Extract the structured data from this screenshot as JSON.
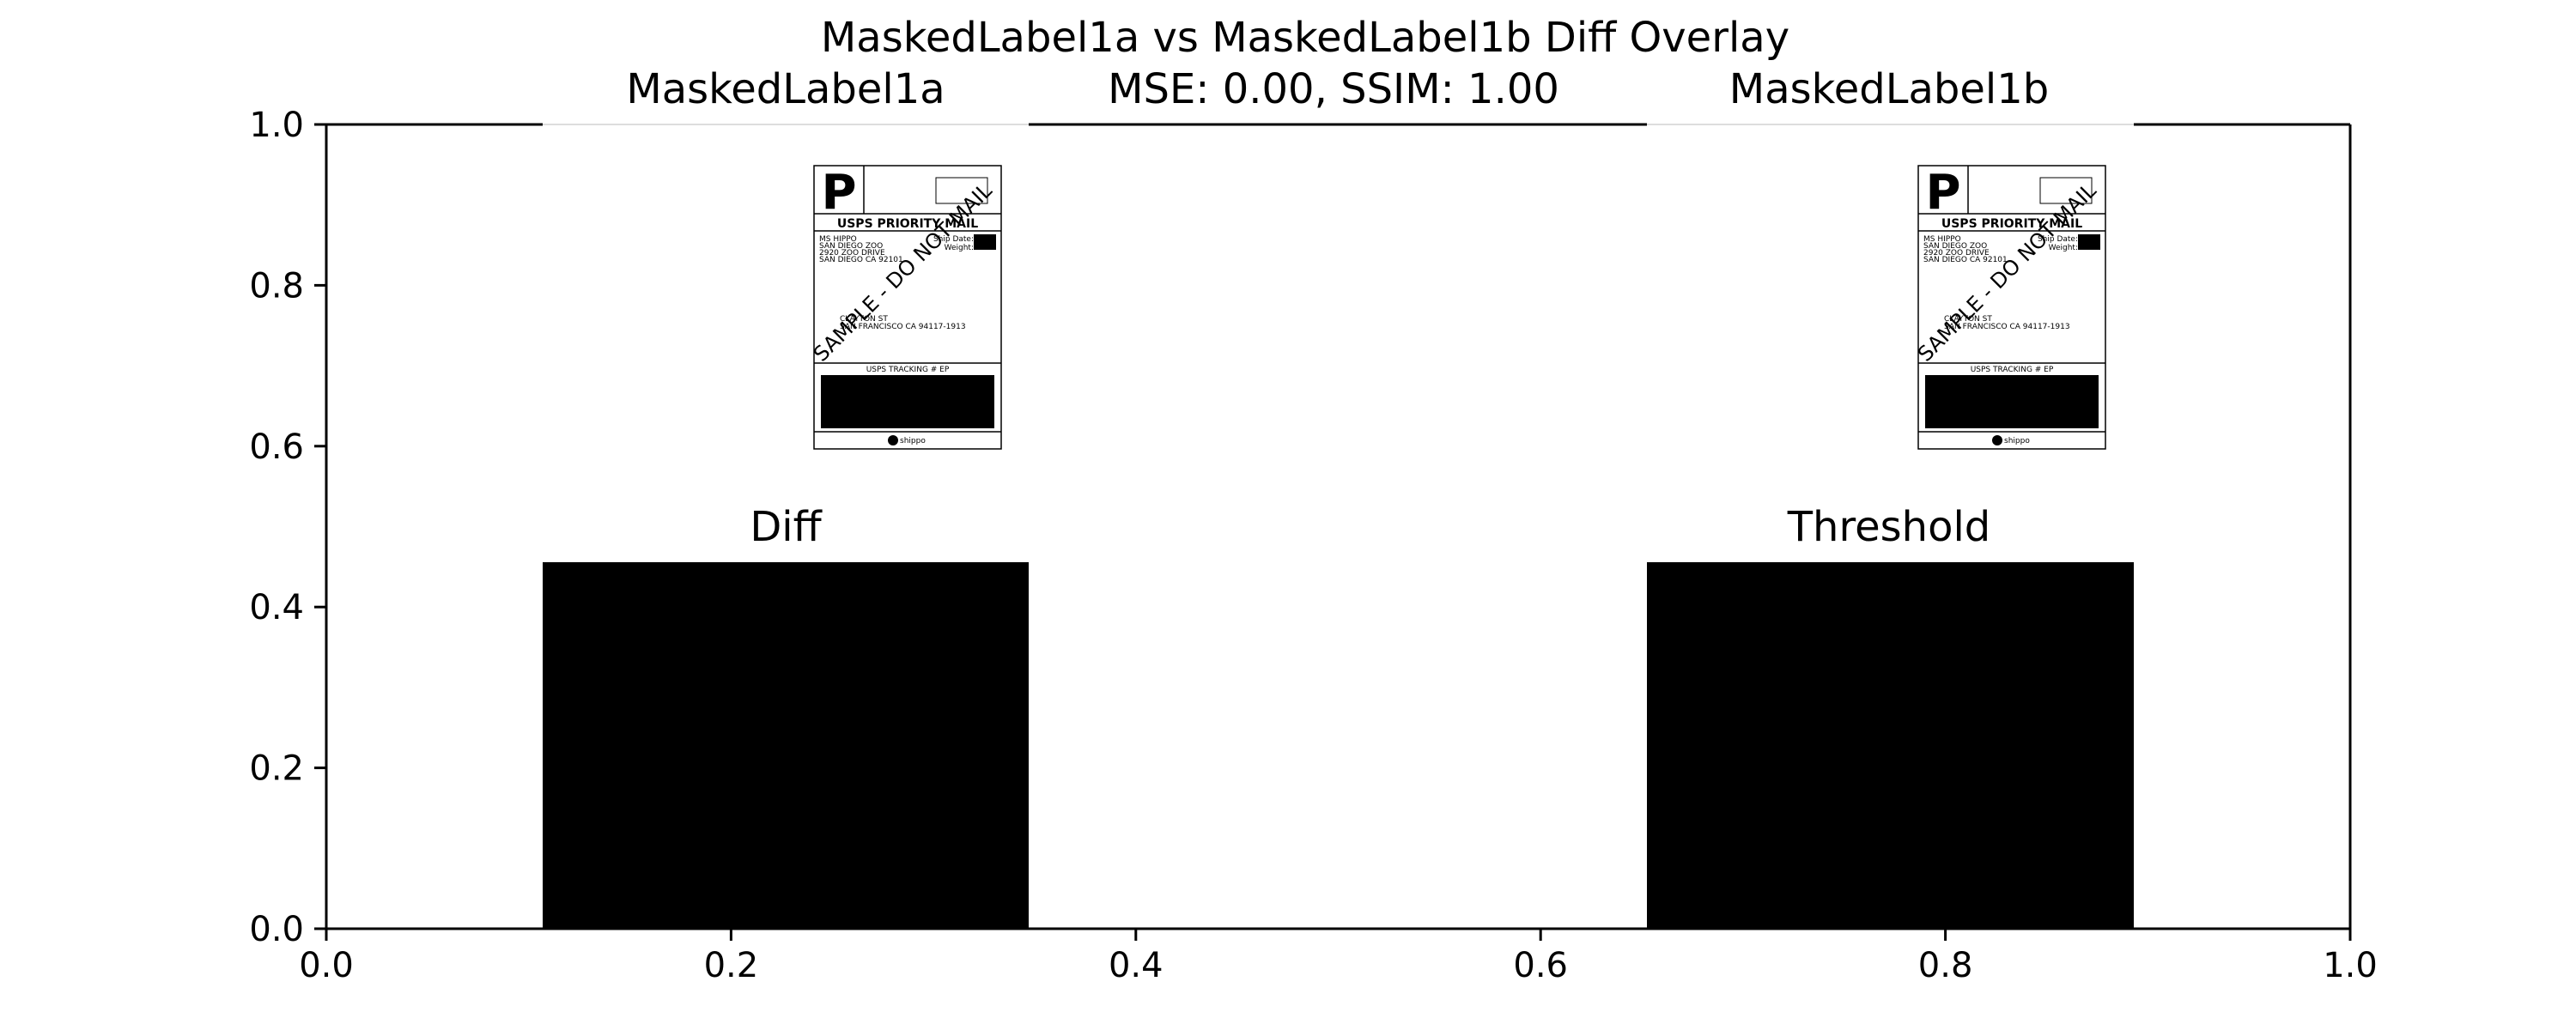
{
  "chart_data": {
    "type": "image",
    "title": "MaskedLabel1a vs MaskedLabel1b Diff Overlay",
    "xlim": [
      0.0,
      1.0
    ],
    "ylim": [
      0.0,
      1.0
    ],
    "x_ticks": [
      "0.0",
      "0.2",
      "0.4",
      "0.6",
      "0.8",
      "1.0"
    ],
    "y_ticks": [
      "0.0",
      "0.2",
      "0.4",
      "0.6",
      "0.8",
      "1.0"
    ],
    "grid": false,
    "metrics_text": "MSE: 0.00, SSIM: 1.00",
    "panels": [
      {
        "name": "masked-label-1a-panel",
        "title": "MaskedLabel1a",
        "kind": "label"
      },
      {
        "name": "masked-label-1b-panel",
        "title": "MaskedLabel1b",
        "kind": "label"
      },
      {
        "name": "diff-panel",
        "title": "Diff",
        "kind": "filled-black"
      },
      {
        "name": "threshold-panel",
        "title": "Threshold",
        "kind": "filled-black"
      }
    ],
    "label_image": {
      "logo_letter": "P",
      "service": "USPS PRIORITY MAIL",
      "watermark": "SAMPLE - DO NOT MAIL",
      "sender_lines": [
        "MS HIPPO",
        "SAN DIEGO ZOO",
        "2920 ZOO DRIVE",
        "SAN DIEGO CA 92101"
      ],
      "ship_meta": [
        "Ship Date:",
        "Weight:"
      ],
      "recipient_lines": [
        "CLAYTON ST",
        "SAN FRANCISCO CA 94117-1913"
      ],
      "tracking_header": "USPS TRACKING # EP",
      "footer_brand": "shippo"
    }
  }
}
